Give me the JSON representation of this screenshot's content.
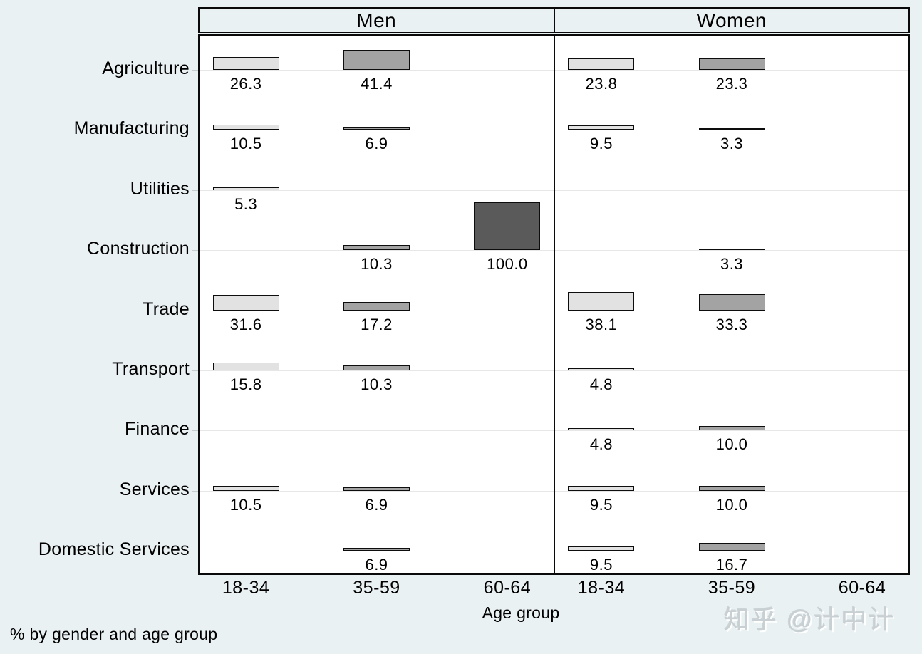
{
  "watermark": "知乎 @计中计",
  "chart_data": {
    "type": "bar",
    "title": "",
    "xlabel": "Age group",
    "note": "% by gender and age group",
    "ylim": [
      0,
      100
    ],
    "grid": true,
    "panels": [
      "Men",
      "Women"
    ],
    "age_groups": [
      "18-34",
      "35-59",
      "60-64"
    ],
    "bar_colors": [
      "#e2e2e2",
      "#a3a3a3",
      "#5a5a5a"
    ],
    "categories": [
      "Agriculture",
      "Manufacturing",
      "Utilities",
      "Construction",
      "Trade",
      "Transport",
      "Finance",
      "Services",
      "Domestic Services"
    ],
    "series": [
      {
        "name": "Men",
        "values": [
          [
            26.3,
            41.4,
            null
          ],
          [
            10.5,
            6.9,
            null
          ],
          [
            5.3,
            null,
            null
          ],
          [
            null,
            10.3,
            100.0
          ],
          [
            31.6,
            17.2,
            null
          ],
          [
            15.8,
            10.3,
            null
          ],
          [
            null,
            null,
            null
          ],
          [
            10.5,
            6.9,
            null
          ],
          [
            null,
            6.9,
            null
          ]
        ]
      },
      {
        "name": "Women",
        "values": [
          [
            23.8,
            23.3,
            null
          ],
          [
            9.5,
            3.3,
            null
          ],
          [
            null,
            null,
            null
          ],
          [
            null,
            3.3,
            null
          ],
          [
            38.1,
            33.3,
            null
          ],
          [
            4.8,
            null,
            null
          ],
          [
            4.8,
            10.0,
            null
          ],
          [
            9.5,
            10.0,
            null
          ],
          [
            9.5,
            16.7,
            null
          ]
        ]
      }
    ]
  }
}
